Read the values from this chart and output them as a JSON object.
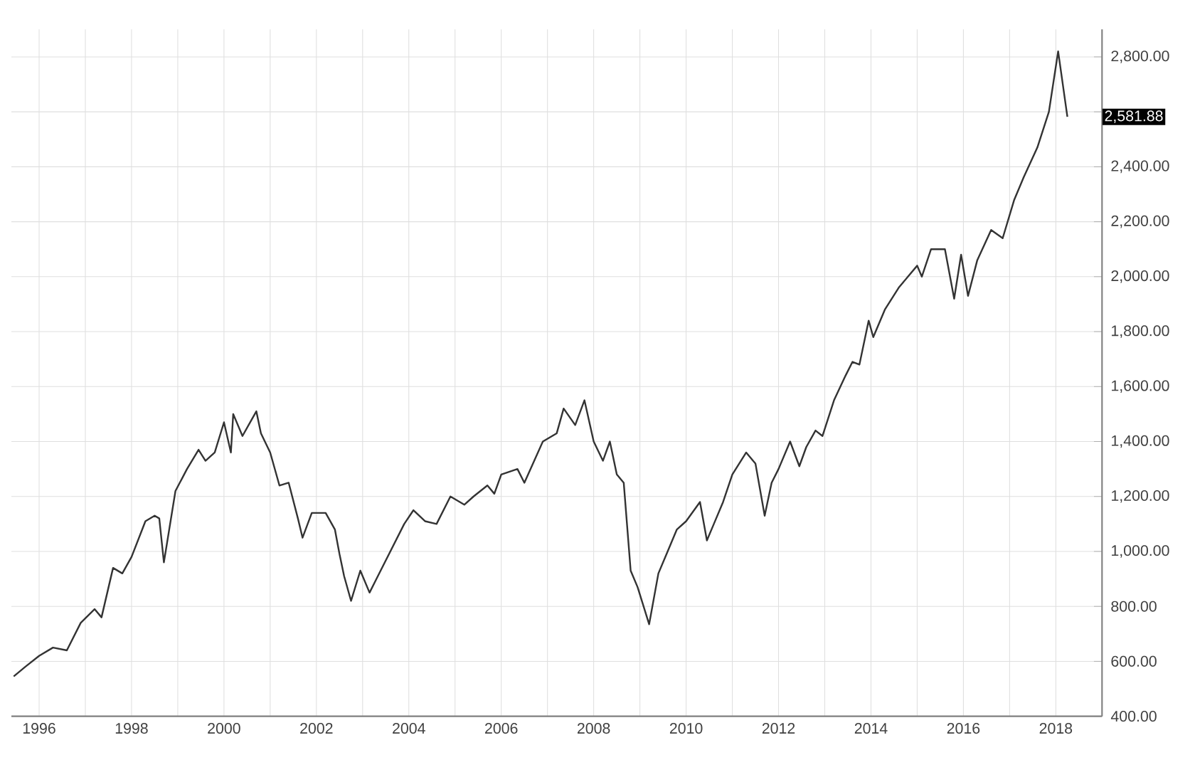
{
  "chart_data": {
    "type": "line",
    "color": "#333333",
    "x": [
      1995.45,
      1995.7,
      1996.0,
      1996.3,
      1996.6,
      1996.9,
      1997.2,
      1997.35,
      1997.6,
      1997.8,
      1998.0,
      1998.3,
      1998.5,
      1998.6,
      1998.7,
      1998.95,
      1999.2,
      1999.45,
      1999.6,
      1999.8,
      2000.0,
      2000.15,
      2000.2,
      2000.4,
      2000.6,
      2000.7,
      2000.8,
      2001.0,
      2001.2,
      2001.4,
      2001.6,
      2001.7,
      2001.9,
      2002.2,
      2002.4,
      2002.5,
      2002.6,
      2002.75,
      2002.95,
      2003.15,
      2003.3,
      2003.6,
      2003.9,
      2004.1,
      2004.35,
      2004.6,
      2004.9,
      2005.2,
      2005.4,
      2005.7,
      2005.85,
      2006.0,
      2006.35,
      2006.5,
      2006.9,
      2007.2,
      2007.35,
      2007.6,
      2007.8,
      2008.0,
      2008.2,
      2008.35,
      2008.5,
      2008.65,
      2008.8,
      2008.95,
      2009.2,
      2009.4,
      2009.6,
      2009.8,
      2010.0,
      2010.3,
      2010.45,
      2010.6,
      2010.8,
      2011.0,
      2011.3,
      2011.5,
      2011.7,
      2011.85,
      2012.0,
      2012.25,
      2012.45,
      2012.6,
      2012.8,
      2012.95,
      2013.2,
      2013.45,
      2013.6,
      2013.75,
      2013.95,
      2014.05,
      2014.3,
      2014.6,
      2014.8,
      2015.0,
      2015.1,
      2015.3,
      2015.6,
      2015.8,
      2015.95,
      2016.1,
      2016.3,
      2016.6,
      2016.85,
      2017.1,
      2017.3,
      2017.6,
      2017.85,
      2018.05,
      2018.25
    ],
    "values": [
      545,
      580,
      620,
      650,
      640,
      740,
      790,
      760,
      940,
      920,
      980,
      1110,
      1130,
      1120,
      960,
      1220,
      1300,
      1370,
      1330,
      1360,
      1470,
      1360,
      1500,
      1420,
      1480,
      1510,
      1430,
      1360,
      1240,
      1250,
      1120,
      1050,
      1140,
      1140,
      1080,
      990,
      910,
      820,
      930,
      850,
      900,
      1000,
      1100,
      1150,
      1110,
      1100,
      1200,
      1170,
      1200,
      1240,
      1210,
      1280,
      1300,
      1250,
      1400,
      1430,
      1520,
      1460,
      1550,
      1400,
      1330,
      1400,
      1280,
      1250,
      930,
      870,
      735,
      920,
      1000,
      1080,
      1110,
      1180,
      1040,
      1100,
      1180,
      1280,
      1360,
      1320,
      1130,
      1250,
      1300,
      1400,
      1310,
      1380,
      1440,
      1420,
      1550,
      1640,
      1690,
      1680,
      1840,
      1780,
      1880,
      1960,
      2000,
      2040,
      2000,
      2100,
      2100,
      1920,
      2080,
      1930,
      2060,
      2170,
      2140,
      2280,
      2360,
      2470,
      2600,
      2820,
      2581.88
    ],
    "xlim": [
      1995.4,
      2019.0
    ],
    "ylim": [
      400,
      2900
    ],
    "xticks": [
      1996,
      {
        "value": 1997,
        "label": null
      },
      1998,
      {
        "value": 1999,
        "label": null
      },
      2000,
      {
        "value": 2001,
        "label": null
      },
      2002,
      {
        "value": 2003,
        "label": null
      },
      2004,
      {
        "value": 2005,
        "label": null
      },
      2006,
      {
        "value": 2007,
        "label": null
      },
      2008,
      {
        "value": 2009,
        "label": null
      },
      2010,
      {
        "value": 2011,
        "label": null
      },
      2012,
      {
        "value": 2013,
        "label": null
      },
      2014,
      {
        "value": 2015,
        "label": null
      },
      2016,
      {
        "value": 2017,
        "label": null
      },
      2018
    ],
    "yticks": [
      {
        "value": 400,
        "label": "400.00"
      },
      {
        "value": 600,
        "label": "600.00"
      },
      {
        "value": 800,
        "label": "800.00"
      },
      {
        "value": 1000,
        "label": "1,000.00"
      },
      {
        "value": 1200,
        "label": "1,200.00"
      },
      {
        "value": 1400,
        "label": "1,400.00"
      },
      {
        "value": 1600,
        "label": "1,600.00"
      },
      {
        "value": 1800,
        "label": "1,800.00"
      },
      {
        "value": 2000,
        "label": "2,000.00"
      },
      {
        "value": 2200,
        "label": "2,200.00"
      },
      {
        "value": 2400,
        "label": "2,400.00"
      },
      {
        "value": 2600,
        "label": null
      },
      {
        "value": 2800,
        "label": "2,800.00"
      }
    ],
    "grid": true,
    "annotations": [
      "2,581.88"
    ]
  }
}
